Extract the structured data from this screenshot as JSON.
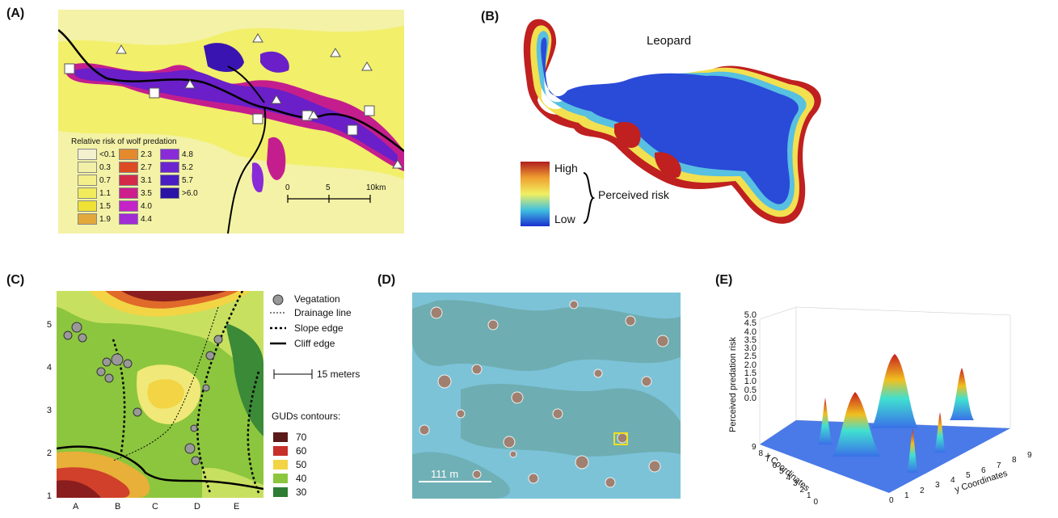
{
  "panels": {
    "a": {
      "label": "(A)",
      "legend_title": "Relative risk of wolf predation",
      "legend_cols": [
        [
          {
            "v": "<0.1",
            "c": "#f3f0d0"
          },
          {
            "v": "0.3",
            "c": "#f2f0a8"
          },
          {
            "v": "0.7",
            "c": "#f3ef8a"
          },
          {
            "v": "1.1",
            "c": "#f2ec5c"
          },
          {
            "v": "1.5",
            "c": "#efe234"
          },
          {
            "v": "1.9",
            "c": "#e3a83a"
          }
        ],
        [
          {
            "v": "2.3",
            "c": "#e58a2c"
          },
          {
            "v": "2.7",
            "c": "#dc4b22"
          },
          {
            "v": "3.1",
            "c": "#d42a4a"
          },
          {
            "v": "3.5",
            "c": "#cc1f8c"
          },
          {
            "v": "4.0",
            "c": "#c424c6"
          },
          {
            "v": "4.4",
            "c": "#a22bd6"
          }
        ],
        [
          {
            "v": "4.8",
            "c": "#8a2bd8"
          },
          {
            "v": "5.2",
            "c": "#6c24d0"
          },
          {
            "v": "5.7",
            "c": "#4a1ec4"
          },
          {
            "v": ">6.0",
            "c": "#2a13a6"
          }
        ]
      ],
      "scale_ticks": [
        "0",
        "5",
        "10km"
      ]
    },
    "b": {
      "label": "(B)",
      "species": "Leopard",
      "high": "High",
      "low": "Low",
      "risk_label": "Perceived risk"
    },
    "c": {
      "label": "(C)",
      "y_ticks": [
        "5",
        "4",
        "3",
        "2",
        "1"
      ],
      "x_ticks": [
        "A",
        "B",
        "C",
        "D",
        "E"
      ],
      "legend": {
        "vegetation": "Vegatation",
        "drainage": "Drainage line",
        "slope": "Slope edge",
        "cliff": "Cliff edge"
      },
      "scale": "15 meters",
      "contours_title": "GUDs contours:",
      "contours": [
        {
          "v": "70",
          "c": "#5a1a1a"
        },
        {
          "v": "60",
          "c": "#c8302a"
        },
        {
          "v": "50",
          "c": "#f2d444"
        },
        {
          "v": "40",
          "c": "#8cc63e"
        },
        {
          "v": "30",
          "c": "#2e7d32"
        }
      ]
    },
    "d": {
      "label": "(D)",
      "scale": "111 m"
    },
    "e": {
      "label": "(E)",
      "z_ticks": [
        "5.0",
        "4.5",
        "4.0",
        "3.5",
        "3.0",
        "2.5",
        "2.0",
        "1.5",
        "1.0",
        "0.5",
        "0.0"
      ],
      "z_label": "Perceived predation risk",
      "x_label": "x Coordinates",
      "y_label": "y Coordinates",
      "x_ticks": [
        "9",
        "8",
        "7",
        "6",
        "5",
        "4",
        "3",
        "2",
        "1",
        "0"
      ],
      "y_ticks": [
        "0",
        "1",
        "2",
        "3",
        "4",
        "5",
        "6",
        "7",
        "8",
        "9"
      ]
    }
  },
  "colors": {
    "grass": "#eef24a",
    "pale": "#f4f2a0",
    "purple": "#6a1fc8",
    "magenta": "#c41e8e",
    "ocean": "#7cc3d8"
  }
}
